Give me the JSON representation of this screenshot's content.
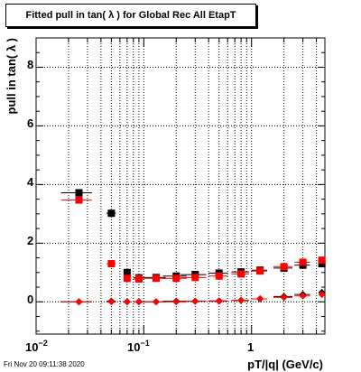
{
  "title": "Fitted pull in tan( λ ) for Global Rec All EtapT",
  "timestamp": "Fri Nov 20 09:11:38 2020",
  "chart_data": {
    "type": "scatter",
    "title": "Fitted pull in tan( λ ) for Global Rec All EtapT",
    "xlabel": "pT/|q| (GeV/c)",
    "ylabel": "pull in tan( λ )",
    "xscale": "log",
    "xlim": [
      0.01,
      4.8
    ],
    "ylim": [
      -1.1,
      9.0
    ],
    "grid": true,
    "x_tick_labels": [
      "10^-2",
      "10^-1",
      "1"
    ],
    "y_tick_labels": [
      "0",
      "2",
      "4",
      "6",
      "8"
    ],
    "colors": {
      "series_a": "#000000",
      "series_b": "#ff0000"
    },
    "series": [
      {
        "color": "#000000",
        "marker": "square",
        "x": [
          0.025,
          0.05,
          0.07,
          0.09,
          0.13,
          0.2,
          0.3,
          0.5,
          0.8,
          1.2,
          2.0,
          3.0,
          4.5
        ],
        "y": [
          3.72,
          3.02,
          1.0,
          0.82,
          0.83,
          0.88,
          0.93,
          0.98,
          1.02,
          1.08,
          1.15,
          1.25,
          1.3
        ],
        "xerr": [
          0.008,
          0.005,
          0.005,
          0.01,
          0.03,
          0.05,
          0.08,
          0.1,
          0.15,
          0.2,
          0.4,
          0.5,
          0.3
        ]
      },
      {
        "color": "#ff0000",
        "marker": "square",
        "x": [
          0.025,
          0.05,
          0.07,
          0.09,
          0.13,
          0.2,
          0.3,
          0.5,
          0.8,
          1.2,
          2.0,
          3.0,
          4.5
        ],
        "y": [
          3.47,
          1.3,
          0.8,
          0.78,
          0.8,
          0.8,
          0.83,
          0.88,
          0.95,
          1.05,
          1.2,
          1.35,
          1.42
        ],
        "xerr": [
          0.008,
          0.005,
          0.005,
          0.01,
          0.03,
          0.05,
          0.08,
          0.1,
          0.15,
          0.2,
          0.4,
          0.5,
          0.3
        ]
      },
      {
        "color": "#000000",
        "marker": "diamond",
        "x": [
          0.025,
          0.05,
          0.07,
          0.09,
          0.13,
          0.2,
          0.3,
          0.5,
          0.8,
          1.2,
          2.0,
          3.0,
          4.5
        ],
        "y": [
          0.0,
          0.02,
          0.0,
          0.0,
          0.0,
          0.02,
          0.02,
          0.03,
          0.05,
          0.1,
          0.18,
          0.25,
          0.32
        ],
        "xerr": [
          0.008,
          0.005,
          0.005,
          0.01,
          0.03,
          0.05,
          0.08,
          0.1,
          0.15,
          0.2,
          0.4,
          0.5,
          0.3
        ]
      },
      {
        "color": "#ff0000",
        "marker": "diamond",
        "x": [
          0.025,
          0.05,
          0.07,
          0.09,
          0.13,
          0.2,
          0.3,
          0.5,
          0.8,
          1.2,
          2.0,
          3.0,
          4.5
        ],
        "y": [
          0.0,
          0.0,
          0.0,
          0.0,
          0.0,
          0.0,
          0.02,
          0.02,
          0.05,
          0.1,
          0.15,
          0.2,
          0.25
        ],
        "xerr": [
          0.008,
          0.005,
          0.005,
          0.01,
          0.03,
          0.05,
          0.08,
          0.1,
          0.15,
          0.2,
          0.4,
          0.5,
          0.3
        ]
      }
    ]
  }
}
